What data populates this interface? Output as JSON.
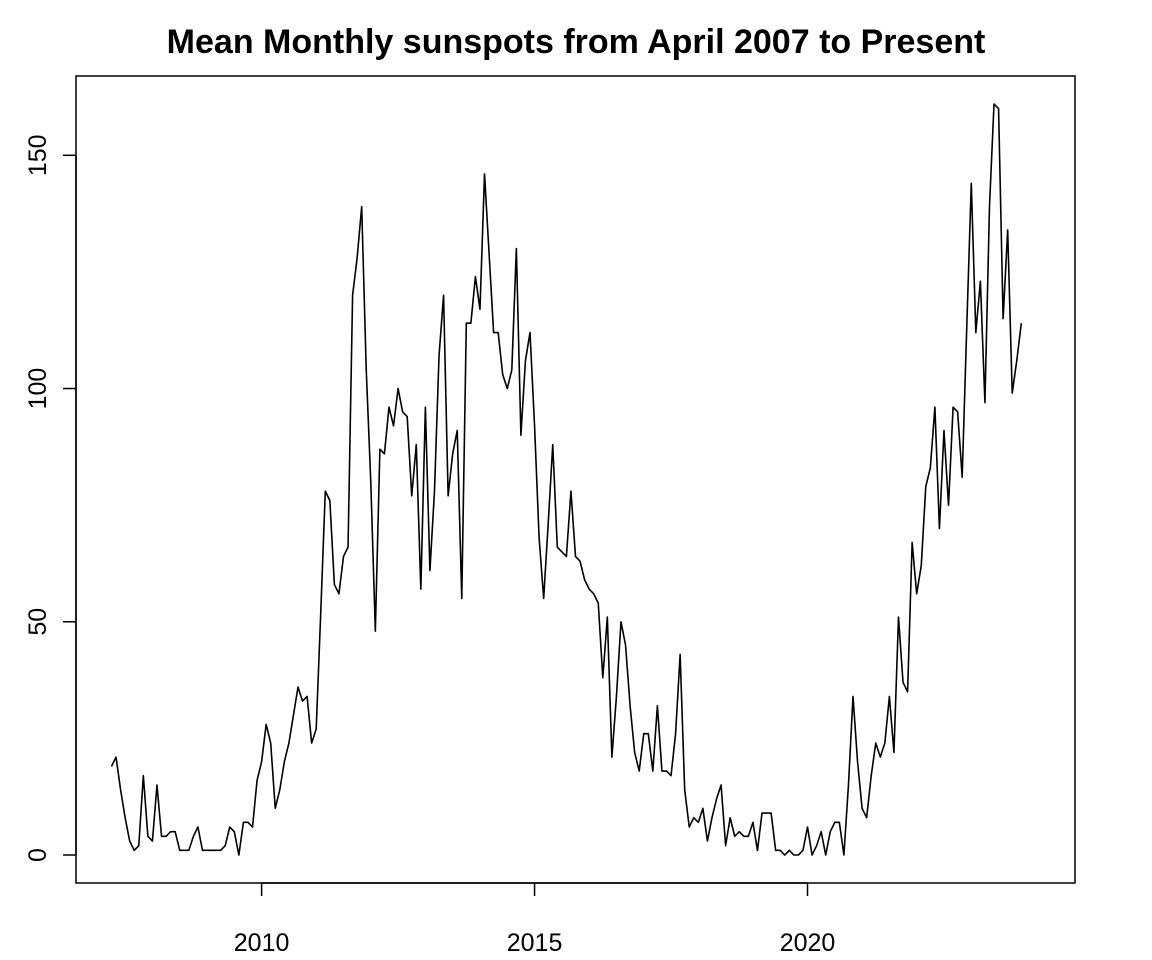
{
  "chart_data": {
    "type": "line",
    "title": "Mean Monthly sunspots from April 2007 to Present",
    "xlabel": "",
    "ylabel": "",
    "x_start": 2007.25,
    "x_step": 0.08333333,
    "xlim": [
      2006.6,
      2024.9
    ],
    "ylim": [
      -6,
      167
    ],
    "x_ticks": [
      2010,
      2015,
      2020
    ],
    "y_ticks": [
      0,
      50,
      100,
      150
    ],
    "grid": false,
    "series": [
      {
        "color": "#000000",
        "values": [
          19,
          21,
          14,
          8,
          3,
          1,
          2,
          17,
          4,
          3,
          15,
          4,
          4,
          5,
          5,
          1,
          1,
          1,
          4,
          6,
          1,
          1,
          1,
          1,
          1,
          2,
          6,
          5,
          0,
          7,
          7,
          6,
          16,
          20,
          28,
          24,
          10,
          14,
          20,
          24,
          30,
          36,
          33,
          34,
          24,
          27,
          52,
          78,
          76,
          58,
          56,
          64,
          66,
          120,
          128,
          139,
          104,
          80,
          48,
          87,
          86,
          96,
          92,
          100,
          95,
          94,
          77,
          88,
          57,
          96,
          61,
          78,
          107,
          120,
          77,
          86,
          91,
          55,
          114,
          114,
          124,
          117,
          146,
          129,
          112,
          112,
          103,
          100,
          104,
          130,
          90,
          106,
          112,
          92,
          68,
          55,
          71,
          88,
          66,
          65,
          64,
          78,
          64,
          63,
          59,
          57,
          56,
          54,
          38,
          51,
          21,
          34,
          50,
          45,
          32,
          22,
          18,
          26,
          26,
          18,
          32,
          18,
          18,
          17,
          26,
          43,
          14,
          6,
          8,
          7,
          10,
          3,
          8,
          12,
          15,
          2,
          8,
          4,
          5,
          4,
          4,
          7,
          1,
          9,
          9,
          9,
          1,
          1,
          0,
          1,
          0,
          0,
          1,
          6,
          0,
          2,
          5,
          0,
          5,
          7,
          7,
          0,
          15,
          34,
          20,
          10,
          8,
          17,
          24,
          21,
          24,
          34,
          22,
          51,
          37,
          35,
          67,
          56,
          62,
          79,
          83,
          96,
          70,
          91,
          75,
          96,
          95,
          81,
          113,
          144,
          112,
          123,
          97,
          139,
          161,
          160,
          115,
          134,
          99,
          106,
          114
        ]
      }
    ]
  }
}
